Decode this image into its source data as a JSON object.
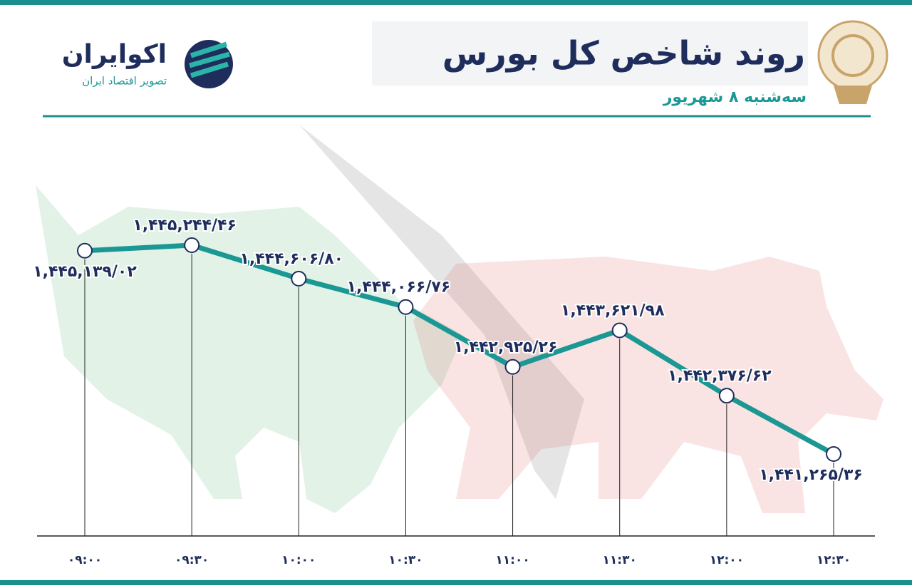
{
  "chart_data": {
    "type": "line",
    "title": "روند شاخص کل بورس",
    "subtitle": "سه‌شنبه ۸ شهریور",
    "brand": "اکوایران",
    "brand_tagline": "تصویر اقتصاد ایران",
    "categories": [
      "۰۹:۰۰",
      "۰۹:۳۰",
      "۱۰:۰۰",
      "۱۰:۳۰",
      "۱۱:۰۰",
      "۱۱:۳۰",
      "۱۲:۰۰",
      "۱۲:۳۰"
    ],
    "series": [
      {
        "name": "شاخص کل",
        "color": "#1b9894",
        "values": [
          1445139.02,
          1445244.46,
          1444606.8,
          1444066.76,
          1442925.26,
          1443621.98,
          1442376.62,
          1441265.36
        ],
        "value_labels": [
          "۱,۴۴۵,۱۳۹/۰۲",
          "۱,۴۴۵,۲۴۴/۴۶",
          "۱,۴۴۴,۶۰۶/۸۰",
          "۱,۴۴۴,۰۶۶/۷۶",
          "۱,۴۴۲,۹۲۵/۲۶",
          "۱,۴۴۳,۶۲۱/۹۸",
          "۱,۴۴۲,۳۷۶/۶۲",
          "۱,۴۴۱,۲۶۵/۳۶"
        ]
      }
    ]
  }
}
